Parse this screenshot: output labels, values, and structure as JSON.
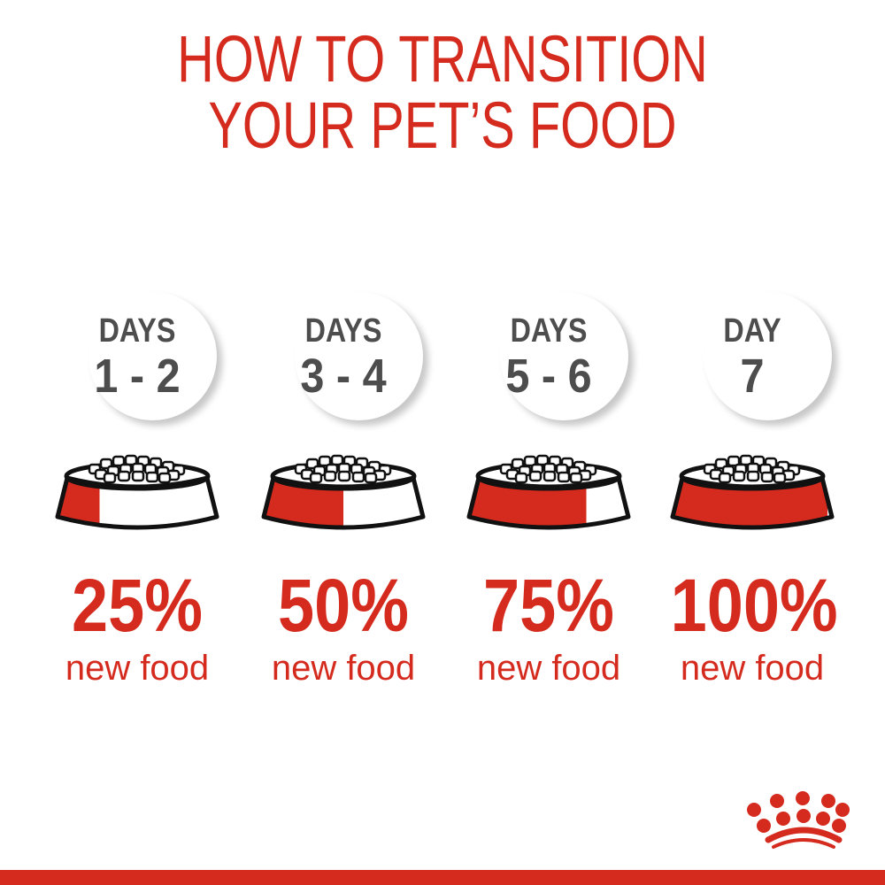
{
  "title": {
    "line1": "HOW TO TRANSITION",
    "line2": "YOUR PET’S FOOD"
  },
  "colors": {
    "accent": "#d52b1e",
    "text_gray": "#4d4d4d"
  },
  "steps": [
    {
      "label": "DAYS",
      "range": "1 - 2",
      "percent": "25%",
      "caption": "new food",
      "new_food_fraction": 0.25
    },
    {
      "label": "DAYS",
      "range": "3 - 4",
      "percent": "50%",
      "caption": "new food",
      "new_food_fraction": 0.5
    },
    {
      "label": "DAYS",
      "range": "5 - 6",
      "percent": "75%",
      "caption": "new food",
      "new_food_fraction": 0.75
    },
    {
      "label": "DAY",
      "range": "7",
      "percent": "100%",
      "caption": "new food",
      "new_food_fraction": 1.0
    }
  ],
  "logo": {
    "icon": "crown-logo-icon"
  }
}
